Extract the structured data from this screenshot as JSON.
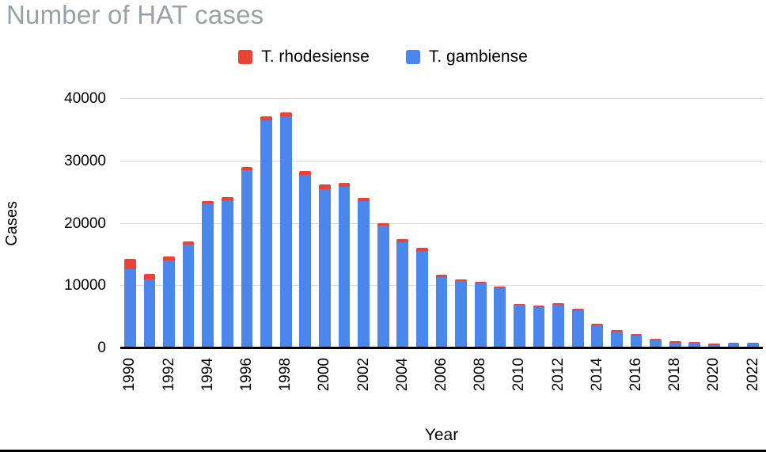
{
  "chart": {
    "title": "Number of HAT cases",
    "xlabel": "Year",
    "ylabel": "Cases"
  },
  "chart_data": {
    "type": "bar",
    "stacked": true,
    "title": "Number of HAT cases",
    "xlabel": "Year",
    "ylabel": "Cases",
    "ylim": [
      0,
      40000
    ],
    "yticks": [
      0,
      10000,
      20000,
      30000,
      40000
    ],
    "grid": true,
    "legend_position": "top",
    "x_tick_every": 2,
    "categories": [
      1990,
      1991,
      1992,
      1993,
      1994,
      1995,
      1996,
      1997,
      1998,
      1999,
      2000,
      2001,
      2002,
      2003,
      2004,
      2005,
      2006,
      2007,
      2008,
      2009,
      2010,
      2011,
      2012,
      2013,
      2014,
      2015,
      2016,
      2017,
      2018,
      2019,
      2020,
      2021,
      2022
    ],
    "series": [
      {
        "name": "T. rhodesiense",
        "color": "#ea4335",
        "values": [
          1600,
          830,
          620,
          490,
          340,
          500,
          570,
          600,
          610,
          620,
          710,
          630,
          460,
          470,
          540,
          450,
          420,
          280,
          260,
          150,
          170,
          110,
          110,
          90,
          70,
          50,
          60,
          55,
          25,
          120,
          100,
          55,
          50
        ]
      },
      {
        "name": "T. gambiense",
        "color": "#4a86ec",
        "values": [
          12750,
          11070,
          14150,
          16600,
          23250,
          23700,
          28570,
          36580,
          37190,
          27860,
          25540,
          25870,
          23670,
          19630,
          16980,
          15620,
          11380,
          10770,
          10370,
          9690,
          6970,
          6630,
          7000,
          6140,
          3700,
          2680,
          2050,
          1370,
          950,
          860,
          570,
          750,
          750
        ]
      }
    ]
  }
}
